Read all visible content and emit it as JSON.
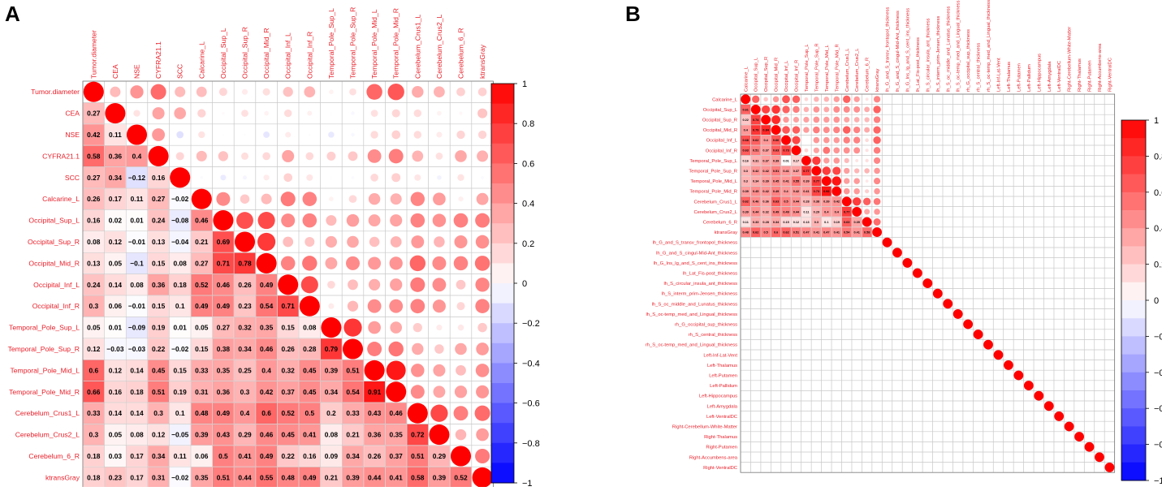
{
  "panels": [
    {
      "letter": "A"
    },
    {
      "letter": "B"
    }
  ],
  "colors": {
    "positive": "#ff0000",
    "negative": "#0000ff",
    "neutral": "#ffffff",
    "label": "#e8202a",
    "grid": "#c8c8c8"
  },
  "chart_data": [
    {
      "type": "heatmap",
      "subtype": "correlation-matrix (circles upper triangle, coefficients lower triangle)",
      "panel": "A",
      "variables": [
        "Tumor.diameter",
        "CEA",
        "NSE",
        "CYFRA21.1",
        "SCC",
        "Calcarine_L",
        "Occipital_Sup_L",
        "Occipital_Sup_R",
        "Occipital_Mid_R",
        "Occipital_Inf_L",
        "Occipital_Inf_R",
        "Temporal_Pole_Sup_L",
        "Temporal_Pole_Sup_R",
        "Temporal_Pole_Mid_L",
        "Temporal_Pole_Mid_R",
        "Cerebelum_Crus1_L",
        "Cerebelum_Crus2_L",
        "Cerebelum_6_R",
        "ktransGray"
      ],
      "lower_triangle": [
        [],
        [
          "0.27"
        ],
        [
          "0.42",
          "0.11"
        ],
        [
          "0.58",
          "0.36",
          "0.4"
        ],
        [
          "0.27",
          "0.34",
          "−0.12",
          "0.16"
        ],
        [
          "0.26",
          "0.17",
          "0.11",
          "0.27",
          "−0.02"
        ],
        [
          "0.16",
          "0.02",
          "0.01",
          "0.24",
          "−0.08",
          "0.46"
        ],
        [
          "0.08",
          "0.12",
          "−0.01",
          "0.13",
          "−0.04",
          "0.21",
          "0.69"
        ],
        [
          "0.13",
          "0.05",
          "−0.1",
          "0.15",
          "0.08",
          "0.27",
          "0.71",
          "0.78"
        ],
        [
          "0.24",
          "0.14",
          "0.08",
          "0.36",
          "0.18",
          "0.52",
          "0.46",
          "0.26",
          "0.49"
        ],
        [
          "0.3",
          "0.06",
          "−0.01",
          "0.15",
          "0.1",
          "0.49",
          "0.49",
          "0.23",
          "0.54",
          "0.71"
        ],
        [
          "0.05",
          "0.01",
          "−0.09",
          "0.19",
          "0.01",
          "0.05",
          "0.27",
          "0.32",
          "0.35",
          "0.15",
          "0.08"
        ],
        [
          "0.12",
          "−0.03",
          "−0.03",
          "0.22",
          "−0.02",
          "0.15",
          "0.38",
          "0.34",
          "0.46",
          "0.26",
          "0.28",
          "0.79"
        ],
        [
          "0.6",
          "0.12",
          "0.14",
          "0.45",
          "0.15",
          "0.33",
          "0.35",
          "0.25",
          "0.4",
          "0.32",
          "0.45",
          "0.39",
          "0.51"
        ],
        [
          "0.66",
          "0.16",
          "0.18",
          "0.51",
          "0.19",
          "0.31",
          "0.36",
          "0.3",
          "0.42",
          "0.37",
          "0.45",
          "0.34",
          "0.54",
          "0.91"
        ],
        [
          "0.33",
          "0.14",
          "0.14",
          "0.3",
          "0.1",
          "0.48",
          "0.49",
          "0.4",
          "0.6",
          "0.52",
          "0.5",
          "0.2",
          "0.33",
          "0.43",
          "0.46"
        ],
        [
          "0.3",
          "0.05",
          "0.08",
          "0.12",
          "−0.05",
          "0.39",
          "0.43",
          "0.29",
          "0.46",
          "0.45",
          "0.41",
          "0.08",
          "0.21",
          "0.36",
          "0.35",
          "0.72"
        ],
        [
          "0.18",
          "0.03",
          "0.17",
          "0.34",
          "0.11",
          "0.06",
          "0.5",
          "0.41",
          "0.49",
          "0.22",
          "0.16",
          "0.09",
          "0.34",
          "0.26",
          "0.37",
          "0.51",
          "0.29"
        ],
        [
          "0.18",
          "0.23",
          "0.17",
          "0.31",
          "−0.02",
          "0.35",
          "0.51",
          "0.44",
          "0.55",
          "0.48",
          "0.49",
          "0.21",
          "0.39",
          "0.44",
          "0.41",
          "0.58",
          "0.39",
          "0.52"
        ]
      ],
      "colorbar": {
        "min": -1,
        "max": 1,
        "ticks": [
          "1",
          "0.8",
          "0.6",
          "0.4",
          "0.2",
          "0",
          "−0.2",
          "−0.4",
          "−0.6",
          "−0.8",
          "−1"
        ]
      }
    },
    {
      "type": "heatmap",
      "subtype": "correlation-matrix (circles upper triangle, coefficients lower triangle)",
      "panel": "B",
      "variables": [
        "Calcarine_L",
        "Occipital_Sup_L",
        "Occipital_Sup_R",
        "Occipital_Mid_R",
        "Occipital_Inf_L",
        "Occipital_Inf_R",
        "Temporal_Pole_Sup_L",
        "Temporal_Pole_Sup_R",
        "Temporal_Pole_Mid_L",
        "Temporal_Pole_Mid_R",
        "Cerebelum_Crus1_L",
        "Cerebelum_Crus2_L",
        "Cerebelum_6_R",
        "ktransGray",
        "lh_G_and_S_transv_frontopol_thickness",
        "lh_G_and_S_cingul-Mid-Ant_thickness",
        "lh_G_Ins_lg_and_S_cent_ins_thickness",
        "lh_Lat_Fis-post_thickness",
        "lh_S_circular_insula_ant_thickness",
        "lh_S_interm_prim-Jensen_thickness",
        "lh_S_oc_middle_and_Lunatus_thickness",
        "lh_S_oc-temp_med_and_Lingual_thickness",
        "rh_G_occipital_sup_thickness",
        "rh_S_central_thickness",
        "rh_S_oc-temp_med_and_Lingual_thickness",
        "Left-Inf-Lat-Vent",
        "Left-Thalamus",
        "Left-Putamen",
        "Left-Pallidum",
        "Left-Hippocampus",
        "Left-Amygdala",
        "Left-VentralDC",
        "Right-Cerebellum-White-Matter",
        "Right-Thalamus",
        "Right-Putamen",
        "Right-Accumbens-area",
        "Right-VentralDC"
      ],
      "row_labels": [
        "Calcarine_L",
        "Occipital_Sup_L",
        "Occipital_Sup_R",
        "Occipital_Mid_R",
        "Occipital_Inf_L",
        "Occipital_Inf_R",
        "Temporal_Pole_Sup_L",
        "Temporal_Pole_Sup_R",
        "Temporal_Pole_Mid_L",
        "Temporal_Pole_Mid_R",
        "Cerebelum_Crus1_L",
        "Cerebelum_Crus2_L",
        "Cerebelum_6_R",
        "ktransGray",
        "lh_G_and_S_transv_frontopol_thickness",
        "lh_G_and_S_cingul-Mid-Ant_thickness",
        "lh_G_Ins_lg_and_S_cent_ins_thickness",
        "lh_Lat_Fis-post_thickness",
        "lh_S_circular_insula_ant_thickness",
        "lh_S_interm_prim-Jensen_thickness",
        "lh_S_oc_middle_and_Lunatus_thickness",
        "lh_S_oc-temp_med_and_Lingual_thickness",
        "rh_G_occipital_sup_thickness",
        "rh_S_central_thickness",
        "rh_S_oc-temp_med_and_Lingual_thickness",
        "Left-Inf-Lat-Vent",
        "Left-Thalamus",
        "Left-Putamen",
        "Left-Pallidum",
        "Left-Hippocampus",
        "Left-Amygdala",
        "Left-VentralDC",
        "Right-Cerebellum-White-Matter",
        "Right-Thalamus",
        "Right-Putamen",
        "Right-Accumbens-area",
        "Right-VentralDC"
      ],
      "lower_triangle_first_rows": [
        [],
        [
          "0.61"
        ],
        [
          "0.22",
          "0.74"
        ],
        [
          "0.4",
          "0.79",
          "0.84"
        ],
        [
          "0.68",
          "0.62",
          "0.4",
          "0.66"
        ],
        [
          "0.63",
          "0.51",
          "0.37",
          "0.63",
          "0.73"
        ],
        [
          "0.16",
          "0.31",
          "0.37",
          "0.39",
          "0.01",
          "0.17"
        ],
        [
          "0.3",
          "0.42",
          "0.42",
          "0.51",
          "0.41",
          "0.37",
          "0.77"
        ],
        [
          "0.3",
          "0.34",
          "0.39",
          "0.45",
          "0.41",
          "0.55",
          "0.39",
          "0.77"
        ],
        [
          "0.39",
          "0.45",
          "0.42",
          "0.49",
          "0.4",
          "0.42",
          "0.41",
          "0.73",
          "0.92"
        ],
        [
          "0.62",
          "0.46",
          "0.36",
          "0.63",
          "0.5",
          "0.44",
          "0.28",
          "0.38",
          "0.39",
          "0.42"
        ],
        [
          "0.39",
          "0.44",
          "0.32",
          "0.49",
          "0.49",
          "0.44",
          "0.11",
          "0.29",
          "0.4",
          "0.4",
          "0.77"
        ],
        [
          "0.11",
          "0.33",
          "0.28",
          "0.34",
          "0.15",
          "0.12",
          "0.13",
          "0.3",
          "0.1",
          "0.19",
          "0.63",
          "0.35"
        ],
        [
          "0.48",
          "0.62",
          "0.5",
          "0.6",
          "0.62",
          "0.51",
          "0.47",
          "0.41",
          "0.47",
          "0.41",
          "0.54",
          "0.41",
          "0.58"
        ]
      ],
      "colorbar": {
        "min": -1,
        "max": 1,
        "ticks": [
          "1",
          "0.8",
          "0.6",
          "0.4",
          "0.2",
          "0",
          "−0.2",
          "−0.4",
          "−0.6",
          "−0.8",
          "−1"
        ]
      }
    }
  ]
}
